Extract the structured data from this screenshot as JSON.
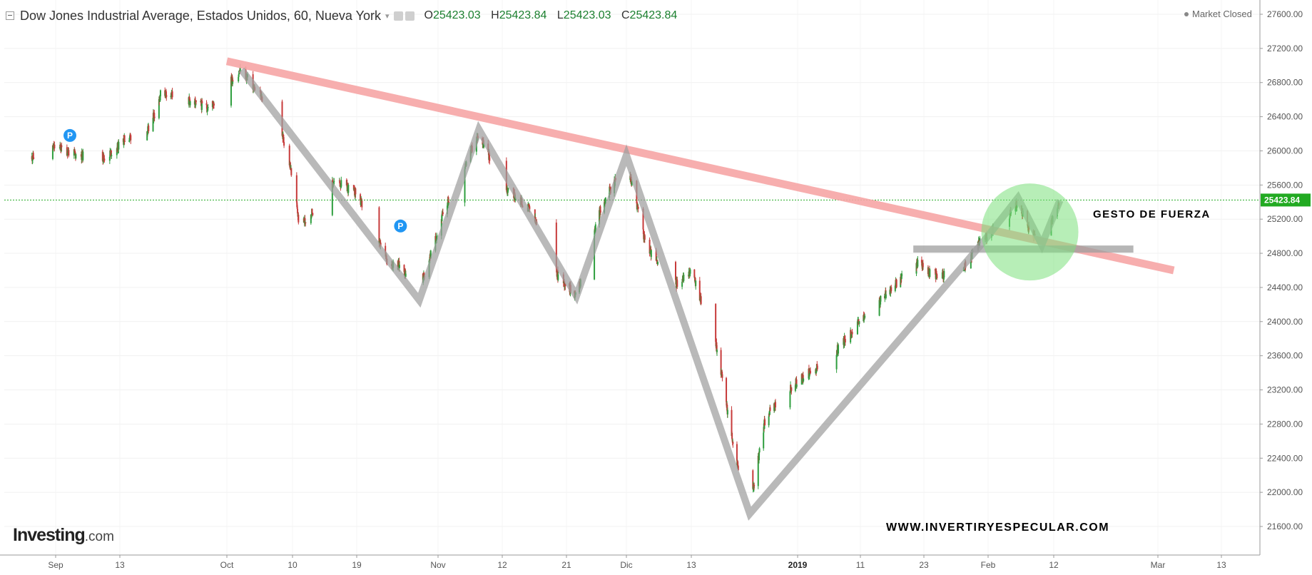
{
  "header": {
    "title": "Dow Jones Industrial Average, Estados Unidos, 60, Nueva York",
    "ohlc": [
      {
        "key": "O",
        "value": "25423.03"
      },
      {
        "key": "H",
        "value": "25423.84"
      },
      {
        "key": "L",
        "value": "25423.03"
      },
      {
        "key": "C",
        "value": "25423.84"
      }
    ]
  },
  "status": "Market Closed",
  "logo": {
    "brand": "Investing",
    "domain": ".com"
  },
  "annotations": {
    "force": "GESTO DE FUERZA",
    "website": "WWW.INVERTIRYESPECULAR.COM"
  },
  "markers": [
    "P",
    "P"
  ],
  "colors": {
    "up": "#2e9e3e",
    "down": "#c73a3a",
    "trend_line": "#f7a6a6",
    "pattern": "#9e9e9e",
    "highlight_circle": "#7be07b",
    "current_price": "#22aa22",
    "marker": "#2196f3"
  },
  "chart_data": {
    "type": "candlestick",
    "title": "Dow Jones Industrial Average, Estados Unidos, 60, Nueva York",
    "y_axis": {
      "ticks": [
        "27600.00",
        "27200.00",
        "26800.00",
        "26400.00",
        "26000.00",
        "25600.00",
        "25200.00",
        "24800.00",
        "24400.00",
        "24000.00",
        "23600.00",
        "23200.00",
        "22800.00",
        "22400.00",
        "22000.00",
        "21600.00"
      ],
      "range": [
        21200,
        27600
      ],
      "position": "right"
    },
    "x_axis": {
      "ticks": [
        "Sep",
        "13",
        "Oct",
        "10",
        "19",
        "Nov",
        "12",
        "21",
        "Dic",
        "13",
        "2019",
        "11",
        "23",
        "Feb",
        "12",
        "Mar",
        "13"
      ],
      "bold_ticks": [
        "2019"
      ]
    },
    "current_price": {
      "value": 25423.84,
      "label": "25423.84"
    },
    "price_path": [
      {
        "date": "2018-08-31",
        "close": 25900
      },
      {
        "date": "2018-09-04",
        "close": 26050
      },
      {
        "date": "2018-09-07",
        "close": 25950
      },
      {
        "date": "2018-09-11",
        "close": 25920
      },
      {
        "date": "2018-09-14",
        "close": 26150
      },
      {
        "date": "2018-09-18",
        "close": 26250
      },
      {
        "date": "2018-09-20",
        "close": 26700
      },
      {
        "date": "2018-09-24",
        "close": 26600
      },
      {
        "date": "2018-09-28",
        "close": 26500
      },
      {
        "date": "2018-10-03",
        "close": 26950
      },
      {
        "date": "2018-10-05",
        "close": 26700
      },
      {
        "date": "2018-10-08",
        "close": 26400
      },
      {
        "date": "2018-10-10",
        "close": 25700
      },
      {
        "date": "2018-10-11",
        "close": 25100
      },
      {
        "date": "2018-10-16",
        "close": 25650
      },
      {
        "date": "2018-10-19",
        "close": 25500
      },
      {
        "date": "2018-10-24",
        "close": 24700
      },
      {
        "date": "2018-10-26",
        "close": 24650
      },
      {
        "date": "2018-10-29",
        "close": 24350
      },
      {
        "date": "2018-11-02",
        "close": 25300
      },
      {
        "date": "2018-11-08",
        "close": 26200
      },
      {
        "date": "2018-11-12",
        "close": 25600
      },
      {
        "date": "2018-11-16",
        "close": 25300
      },
      {
        "date": "2018-11-20",
        "close": 24500
      },
      {
        "date": "2018-11-23",
        "close": 24300
      },
      {
        "date": "2018-11-28",
        "close": 25350
      },
      {
        "date": "2018-12-03",
        "close": 25900
      },
      {
        "date": "2018-12-06",
        "close": 24900
      },
      {
        "date": "2018-12-10",
        "close": 24400
      },
      {
        "date": "2018-12-13",
        "close": 24600
      },
      {
        "date": "2018-12-18",
        "close": 23650
      },
      {
        "date": "2018-12-21",
        "close": 22500
      },
      {
        "date": "2018-12-24",
        "close": 21800
      },
      {
        "date": "2018-12-27",
        "close": 22900
      },
      {
        "date": "2019-01-02",
        "close": 23300
      },
      {
        "date": "2019-01-07",
        "close": 23600
      },
      {
        "date": "2019-01-11",
        "close": 24000
      },
      {
        "date": "2019-01-17",
        "close": 24400
      },
      {
        "date": "2019-01-22",
        "close": 24700
      },
      {
        "date": "2019-01-24",
        "close": 24550
      },
      {
        "date": "2019-01-28",
        "close": 24550
      },
      {
        "date": "2019-01-31",
        "close": 24950
      },
      {
        "date": "2019-02-04",
        "close": 25200
      },
      {
        "date": "2019-02-06",
        "close": 25400
      },
      {
        "date": "2019-02-08",
        "close": 25050
      },
      {
        "date": "2019-02-10",
        "close": 24900
      },
      {
        "date": "2019-02-13",
        "close": 25420
      }
    ],
    "trend_line": {
      "from": {
        "date": "2018-10-01",
        "value": 27050
      },
      "to": {
        "date": "2019-03-04",
        "value": 24600
      }
    },
    "support_line": {
      "from": {
        "date": "2019-01-21",
        "value": 24850
      },
      "to": {
        "date": "2019-02-25",
        "value": 24850
      }
    },
    "pattern_path": [
      {
        "date": "2018-10-03",
        "value": 26950
      },
      {
        "date": "2018-10-29",
        "value": 24250
      },
      {
        "date": "2018-11-08",
        "value": 26250
      },
      {
        "date": "2018-11-23",
        "value": 24300
      },
      {
        "date": "2018-12-03",
        "value": 25950
      },
      {
        "date": "2018-12-24",
        "value": 21750
      },
      {
        "date": "2019-01-31",
        "value": 24900
      },
      {
        "date": "2019-02-06",
        "value": 25450
      },
      {
        "date": "2019-02-10",
        "value": 24900
      },
      {
        "date": "2019-02-13",
        "value": 25420
      }
    ],
    "highlight_circle": {
      "date": "2019-02-08",
      "value": 25050
    },
    "marker_points": [
      {
        "label": "P",
        "date": "2018-09-06",
        "value": 26180
      },
      {
        "label": "P",
        "date": "2018-10-26",
        "value": 25120
      }
    ]
  }
}
